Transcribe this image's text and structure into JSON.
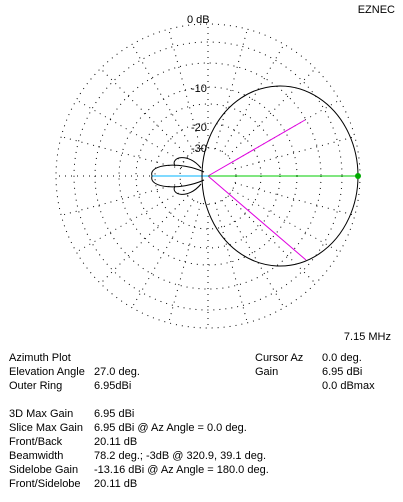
{
  "app_label": "EZNEC",
  "frequency": "7.15 MHz",
  "ring_labels": [
    "0 dB",
    "-10",
    "-20",
    "-30"
  ],
  "info_left": [
    {
      "label": "Azimuth Plot",
      "value": ""
    },
    {
      "label": "Elevation Angle",
      "value": "27.0 deg."
    },
    {
      "label": "Outer Ring",
      "value": "6.95dBi"
    }
  ],
  "info_right": [
    {
      "label": "Cursor Az",
      "value": "0.0 deg."
    },
    {
      "label": "Gain",
      "value": "6.95 dBi"
    },
    {
      "label": "",
      "value": "0.0 dBmax"
    }
  ],
  "stats": [
    {
      "label": "3D Max Gain",
      "value": "6.95 dBi"
    },
    {
      "label": "Slice Max Gain",
      "value": "6.95 dBi @ Az Angle = 0.0 deg."
    },
    {
      "label": "Front/Back",
      "value": "20.11 dB"
    },
    {
      "label": "Beamwidth",
      "value": "78.2 deg.; -3dB @ 320.9, 39.1 deg."
    },
    {
      "label": "Sidelobe Gain",
      "value": "-13.16 dBi @ Az Angle = 180.0 deg."
    },
    {
      "label": "Front/Sidelobe",
      "value": "20.11 dB"
    }
  ],
  "colors": {
    "pattern": "#000000",
    "cursor": "#00cc00",
    "beamwidth": "#e000e0",
    "rear": "#00b4ff",
    "grid": "#000000"
  }
}
